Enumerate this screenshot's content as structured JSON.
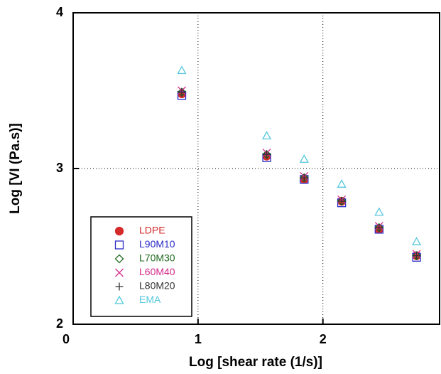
{
  "chart_data": {
    "type": "scatter",
    "x_label": "Log [shear rate (1/s)]",
    "y_label": "Log [VI (Pa.s)]",
    "xlim": [
      0,
      2.94
    ],
    "ylim": [
      2,
      4
    ],
    "xticks": [
      0,
      1,
      2
    ],
    "yticks": [
      2,
      3,
      4
    ],
    "grid": true,
    "legend": "lower left",
    "x": [
      0.87,
      1.55,
      1.85,
      2.15,
      2.45,
      2.75
    ],
    "series": [
      {
        "name": "LDPE",
        "color": "#d42a2a",
        "marker": "circle",
        "values": [
          3.48,
          3.08,
          2.93,
          2.79,
          2.61,
          2.44
        ]
      },
      {
        "name": "L90M10",
        "color": "#2a2ac8",
        "marker": "square",
        "values": [
          3.47,
          3.07,
          2.93,
          2.78,
          2.61,
          2.43
        ]
      },
      {
        "name": "L70M30",
        "color": "#1f6a1f",
        "marker": "diamond",
        "values": [
          3.49,
          3.09,
          2.94,
          2.79,
          2.62,
          2.44
        ]
      },
      {
        "name": "L60M40",
        "color": "#d42a8a",
        "marker": "cross",
        "values": [
          3.5,
          3.1,
          2.95,
          2.8,
          2.63,
          2.45
        ]
      },
      {
        "name": "L80M20",
        "color": "#333333",
        "marker": "plus",
        "values": [
          3.49,
          3.09,
          2.94,
          2.79,
          2.62,
          2.44
        ]
      },
      {
        "name": "EMA",
        "color": "#55c8dc",
        "marker": "triangle",
        "values": [
          3.63,
          3.21,
          3.06,
          2.9,
          2.72,
          2.53
        ]
      }
    ]
  }
}
